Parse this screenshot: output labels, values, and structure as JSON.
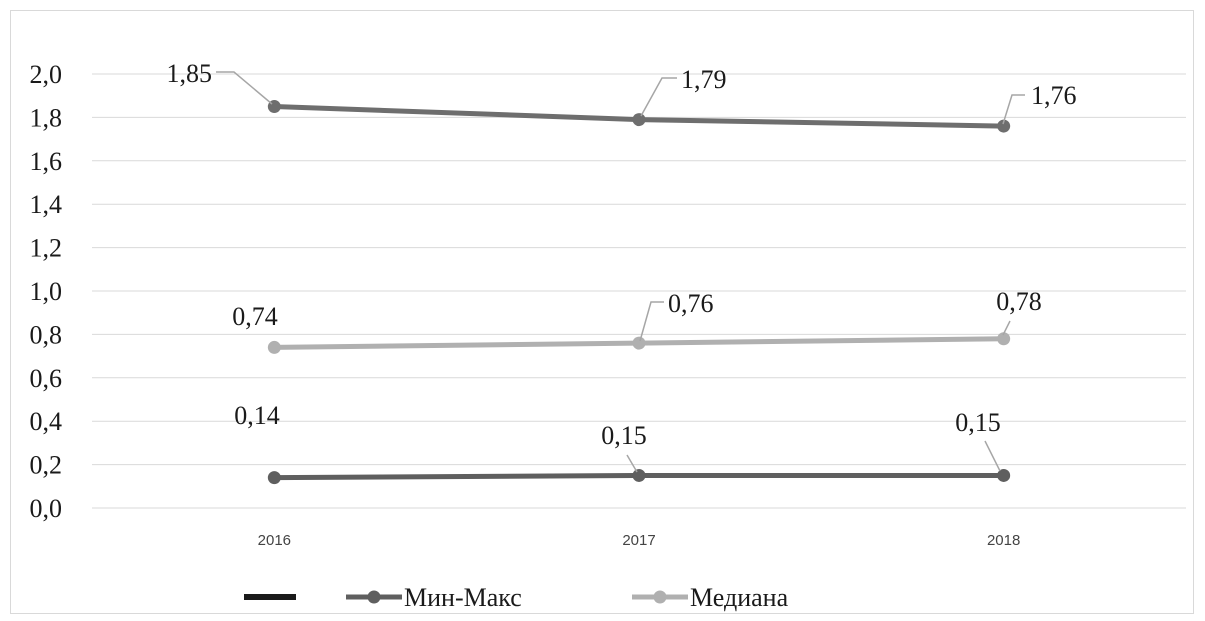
{
  "chart_data": {
    "type": "line",
    "title": "",
    "xlabel": "",
    "ylabel": "",
    "categories": [
      "2016",
      "2017",
      "2018"
    ],
    "ylim": [
      0,
      2.0
    ],
    "y_ticks": [
      "0,0",
      "0,2",
      "0,4",
      "0,6",
      "0,8",
      "1,0",
      "1,2",
      "1,4",
      "1,6",
      "1,8",
      "2,0"
    ],
    "grid": true,
    "legend_position": "bottom",
    "series": [
      {
        "name": "",
        "values": [
          1.85,
          1.79,
          1.76
        ],
        "labels": [
          "1,85",
          "1,79",
          "1,76"
        ],
        "color": "#6e6e6e"
      },
      {
        "name": "Медиана",
        "values": [
          0.74,
          0.76,
          0.78
        ],
        "labels": [
          "0,74",
          "0,76",
          "0,78"
        ],
        "color": "#b0b0b0"
      },
      {
        "name": "Мин-Макс",
        "values": [
          0.14,
          0.15,
          0.15
        ],
        "labels": [
          "0,14",
          "0,15",
          "0,15"
        ],
        "color": "#5f5f5f"
      }
    ],
    "legend": [
      {
        "label": "",
        "style": "line",
        "color": "#1a1a1a"
      },
      {
        "label": "Мин-Макс",
        "style": "line-marker",
        "color": "#5f5f5f"
      },
      {
        "label": "Медиана",
        "style": "line-marker",
        "color": "#b0b0b0"
      }
    ]
  }
}
